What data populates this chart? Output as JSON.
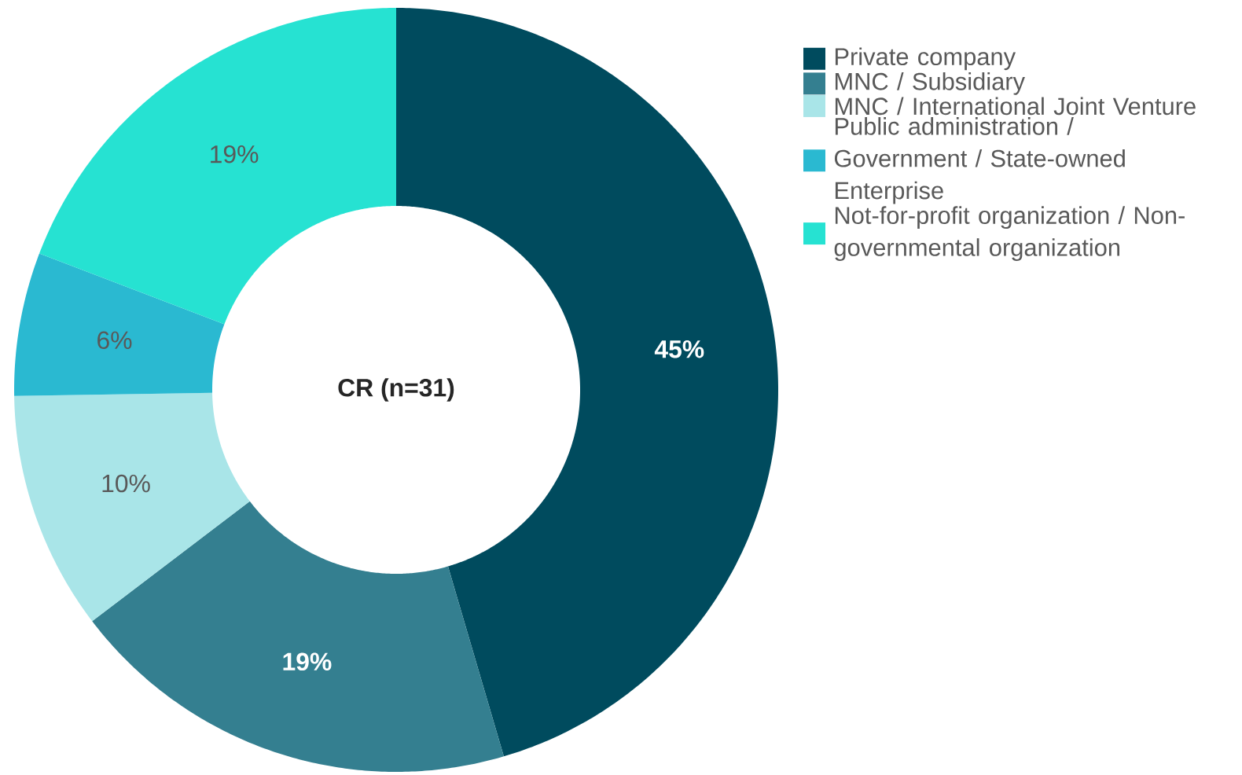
{
  "chart_data": {
    "type": "donut",
    "title": "CR (n=31)",
    "categories": [
      "Private company",
      "MNC / Subsidiary",
      "MNC / International Joint Venture",
      "Public administration / Government / State-owned Enterprise",
      "Not-for-profit organization / Non-governmental organization"
    ],
    "values": [
      45,
      19,
      10,
      6,
      19
    ],
    "colors": [
      "#004b5e",
      "#347f90",
      "#a9e5e8",
      "#2ab9d1",
      "#26e2d2"
    ],
    "value_labels": [
      "45%",
      "19%",
      "10%",
      "6%",
      "19%"
    ],
    "legend": "right"
  }
}
